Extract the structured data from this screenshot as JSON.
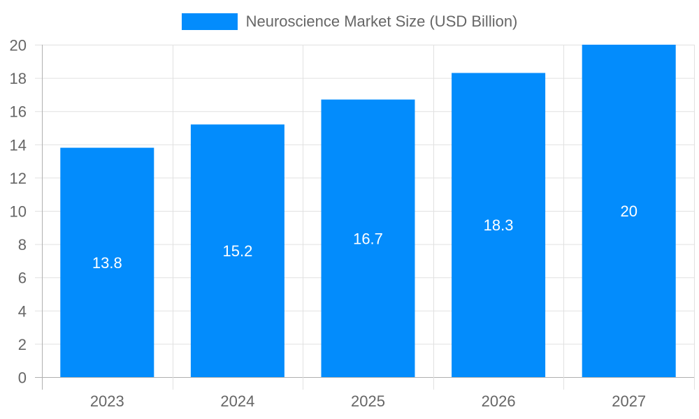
{
  "legend": {
    "label": "Neuroscience Market Size (USD Billion)",
    "color": "#038cfc"
  },
  "colors": {
    "bar": "#038cfc",
    "grid": "#e1e1e1",
    "axis": "#b0b0b0",
    "text": "#666666"
  },
  "chart_data": {
    "type": "bar",
    "title": "",
    "categories": [
      "2023",
      "2024",
      "2025",
      "2026",
      "2027"
    ],
    "series": [
      {
        "name": "Neuroscience Market Size (USD Billion)",
        "values": [
          13.8,
          15.2,
          16.7,
          18.3,
          20
        ]
      }
    ],
    "values": [
      13.8,
      15.2,
      16.7,
      18.3,
      20
    ],
    "data_labels": [
      "13.8",
      "15.2",
      "16.7",
      "18.3",
      "20"
    ],
    "xlabel": "",
    "ylabel": "",
    "ylim": [
      0,
      20
    ],
    "yticks": [
      0,
      2,
      4,
      6,
      8,
      10,
      12,
      14,
      16,
      18,
      20
    ],
    "grid": true,
    "legend_position": "top"
  }
}
